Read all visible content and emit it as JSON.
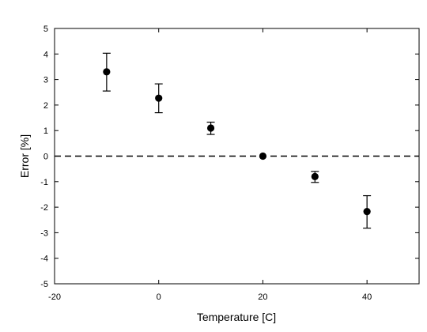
{
  "chart_data": {
    "type": "scatter",
    "title": "",
    "xlabel": "Temperature [C]",
    "ylabel": "Error [%]",
    "xlim": [
      -20,
      50
    ],
    "ylim": [
      -5,
      5
    ],
    "x_ticks": [
      {
        "value": -20,
        "label": "-20"
      },
      {
        "value": 0,
        "label": "0"
      },
      {
        "value": 20,
        "label": "20"
      },
      {
        "value": 40,
        "label": "40"
      }
    ],
    "y_ticks": [
      {
        "value": 5,
        "label": "5"
      },
      {
        "value": 4,
        "label": "4"
      },
      {
        "value": 3,
        "label": "3"
      },
      {
        "value": 2,
        "label": "2"
      },
      {
        "value": 1,
        "label": "1"
      },
      {
        "value": 0,
        "label": "0"
      },
      {
        "value": -1,
        "label": "-1"
      },
      {
        "value": -2,
        "label": "-2"
      },
      {
        "value": -3,
        "label": "-3"
      },
      {
        "value": -4,
        "label": "-4"
      },
      {
        "value": -5,
        "label": "-5"
      }
    ],
    "grid": false,
    "reference_line": {
      "y": 0,
      "style": "dashed"
    },
    "series": [
      {
        "points": [
          {
            "x": -10,
            "y": 3.3,
            "err_low": 2.55,
            "err_high": 4.03
          },
          {
            "x": 0,
            "y": 2.27,
            "err_low": 1.7,
            "err_high": 2.83
          },
          {
            "x": 10,
            "y": 1.1,
            "err_low": 0.85,
            "err_high": 1.33
          },
          {
            "x": 20,
            "y": 0.0,
            "err_low": 0.0,
            "err_high": 0.0
          },
          {
            "x": 30,
            "y": -0.8,
            "err_low": -1.03,
            "err_high": -0.6
          },
          {
            "x": 40,
            "y": -2.17,
            "err_low": -2.82,
            "err_high": -1.55
          }
        ]
      }
    ],
    "colors": {
      "marker": "#000000",
      "axis": "#000000"
    }
  }
}
